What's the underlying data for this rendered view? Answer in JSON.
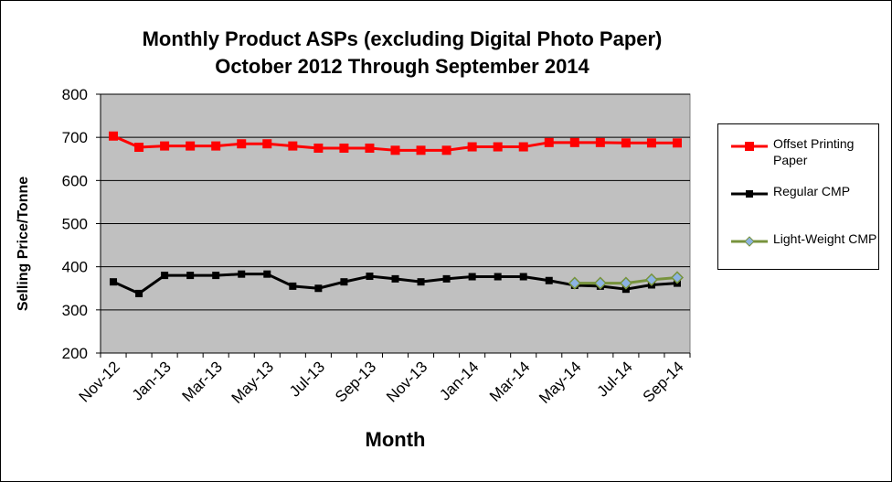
{
  "chart_data": {
    "type": "line",
    "title": "Monthly Product ASPs (excluding Digital Photo Paper)",
    "subtitle": "October 2012 Through September 2014",
    "xlabel": "Month",
    "ylabel": "Selling Price/Tonne",
    "ylim": [
      200,
      800
    ],
    "yticks": [
      200,
      300,
      400,
      500,
      600,
      700,
      800
    ],
    "grid": true,
    "legend_position": "right",
    "plot_background": "#c0c0c0",
    "x": [
      "Nov-12",
      "Dec-12",
      "Jan-13",
      "Feb-13",
      "Mar-13",
      "Apr-13",
      "May-13",
      "Jun-13",
      "Jul-13",
      "Aug-13",
      "Sep-13",
      "Oct-13",
      "Nov-13",
      "Dec-13",
      "Jan-14",
      "Feb-14",
      "Mar-14",
      "Apr-14",
      "May-14",
      "Jun-14",
      "Jul-14",
      "Aug-14",
      "Sep-14"
    ],
    "x_tick_labels": [
      "Nov-12",
      "Jan-13",
      "Mar-13",
      "May-13",
      "Jul-13",
      "Sep-13",
      "Nov-13",
      "Jan-14",
      "Mar-14",
      "May-14",
      "Jul-14",
      "Sep-14"
    ],
    "series": [
      {
        "name": "Offset Printing Paper",
        "color": "#ff0000",
        "values": [
          703,
          677,
          680,
          680,
          680,
          685,
          685,
          680,
          675,
          675,
          675,
          670,
          670,
          670,
          678,
          678,
          678,
          688,
          688,
          688,
          687,
          687,
          687
        ]
      },
      {
        "name": "Regular CMP",
        "color": "#000000",
        "values": [
          365,
          338,
          380,
          380,
          380,
          383,
          383,
          355,
          350,
          365,
          378,
          372,
          365,
          372,
          377,
          377,
          377,
          368,
          357,
          355,
          348,
          358,
          362
        ]
      },
      {
        "name": "Light-Weight CMP",
        "color": "#77933c",
        "values": [
          null,
          null,
          null,
          null,
          null,
          null,
          null,
          null,
          null,
          null,
          null,
          null,
          null,
          null,
          null,
          null,
          null,
          null,
          362,
          362,
          362,
          370,
          375
        ]
      }
    ]
  },
  "legend": {
    "items": [
      {
        "label": "Offset Printing Paper",
        "color": "#ff0000",
        "marker": "square"
      },
      {
        "label": "Regular CMP",
        "color": "#000000",
        "marker": "square"
      },
      {
        "label": "Light-Weight CMP",
        "color": "#77933c",
        "marker": "diamond"
      }
    ]
  }
}
